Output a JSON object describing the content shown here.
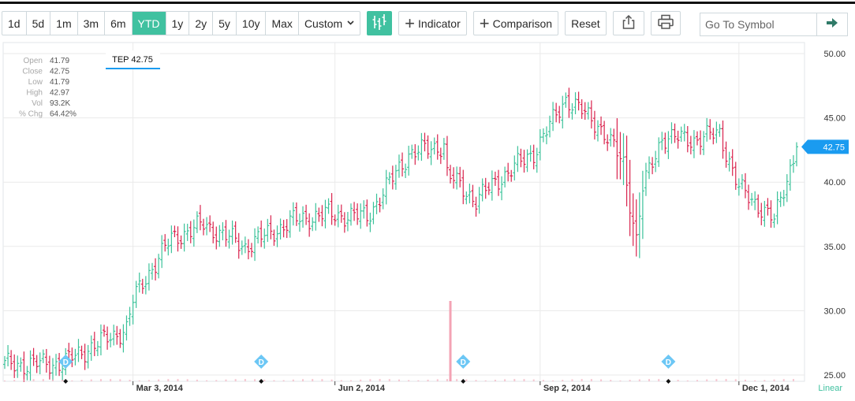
{
  "toolbar": {
    "ranges": [
      "1d",
      "5d",
      "1m",
      "3m",
      "6m",
      "YTD",
      "1y",
      "2y",
      "5y",
      "10y",
      "Max"
    ],
    "active_range": "YTD",
    "custom_label": "Custom",
    "indicator_label": "Indicator",
    "comparison_label": "Comparison",
    "reset_label": "Reset",
    "symbol_placeholder": "Go To Symbol"
  },
  "colors": {
    "up": "#3cc29a",
    "down": "#d9234d",
    "accent": "#40c1a0",
    "price_tag": "#1a9bf0",
    "volume": "#f4a3b4"
  },
  "chart_data": {
    "type": "ohlc",
    "symbol": "TEP",
    "tooltip_label": "TEP 42.75",
    "info": [
      {
        "label": "Open",
        "value": "41.79"
      },
      {
        "label": "Close",
        "value": "42.75"
      },
      {
        "label": "Low",
        "value": "41.79"
      },
      {
        "label": "High",
        "value": "42.97"
      },
      {
        "label": "Vol",
        "value": "93.2K"
      },
      {
        "label": "% Chg",
        "value": "64.42%"
      }
    ],
    "y_ticks": [
      25,
      30,
      35,
      40,
      45,
      50
    ],
    "y_tick_labels": [
      "25.00",
      "30.00",
      "35.00",
      "40.00",
      "45.00",
      "50.00"
    ],
    "ylim": [
      25,
      50
    ],
    "last_price": "42.75",
    "last_value": 42.75,
    "x_labels": [
      {
        "label": "Mar 3, 2014",
        "index": 40
      },
      {
        "label": "Jun 2, 2014",
        "index": 103
      },
      {
        "label": "Sep 2, 2014",
        "index": 167
      },
      {
        "label": "Dec 1, 2014",
        "index": 229
      }
    ],
    "scale_label": "Linear",
    "dividend_indices": [
      19,
      80,
      143,
      207
    ],
    "volume_spike_index": 139,
    "close_series": {
      "start_date": "2014-01-02",
      "frequency": "trading-days",
      "count": 248,
      "anchors": [
        [
          0,
          25.8
        ],
        [
          18,
          25.9
        ],
        [
          27,
          27.2
        ],
        [
          38,
          28.6
        ],
        [
          40,
          30.8
        ],
        [
          44,
          32.6
        ],
        [
          52,
          35.6
        ],
        [
          62,
          36.7
        ],
        [
          75,
          35.0
        ],
        [
          90,
          37.0
        ],
        [
          100,
          37.5
        ],
        [
          113,
          37.3
        ],
        [
          126,
          42.2
        ],
        [
          137,
          42.9
        ],
        [
          138,
          40.6
        ],
        [
          147,
          38.6
        ],
        [
          154,
          40.2
        ],
        [
          165,
          42.3
        ],
        [
          171,
          44.8
        ],
        [
          175,
          46.5
        ],
        [
          185,
          44.5
        ],
        [
          193,
          41.5
        ],
        [
          197,
          35.5
        ],
        [
          199,
          39.5
        ],
        [
          205,
          43.5
        ],
        [
          215,
          43.3
        ],
        [
          223,
          43.8
        ],
        [
          229,
          39.5
        ],
        [
          236,
          38.0
        ],
        [
          240,
          37.0
        ],
        [
          247,
          42.75
        ]
      ]
    }
  }
}
